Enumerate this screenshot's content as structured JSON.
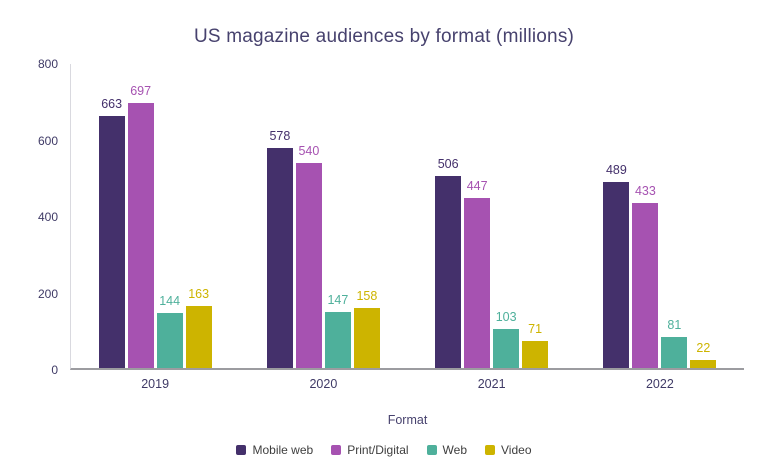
{
  "chart_data": {
    "type": "bar",
    "title": "US magazine audiences by format (millions)",
    "xlabel": "Format",
    "ylabel": "",
    "ylim": [
      0,
      800
    ],
    "yticks": [
      0,
      200,
      400,
      600,
      800
    ],
    "grid": false,
    "legend_position": "bottom",
    "categories": [
      "2019",
      "2020",
      "2021",
      "2022"
    ],
    "series": [
      {
        "name": "Mobile web",
        "color": "#44306B",
        "values": [
          663,
          578,
          506,
          489
        ]
      },
      {
        "name": "Print/Digital",
        "color": "#A652B1",
        "values": [
          697,
          540,
          447,
          433
        ]
      },
      {
        "name": "Web",
        "color": "#4EB09B",
        "values": [
          144,
          147,
          103,
          81
        ]
      },
      {
        "name": "Video",
        "color": "#CDB400",
        "values": [
          163,
          158,
          71,
          22
        ]
      }
    ]
  },
  "style_colors": {
    "title_text": "#47426E",
    "axis_text": "#3F3A66",
    "legend_text": "#3E3E3E",
    "y_axis_line": "#D9D9DF",
    "baseline": "#9C9CA0",
    "background": "#FFFFFF"
  }
}
